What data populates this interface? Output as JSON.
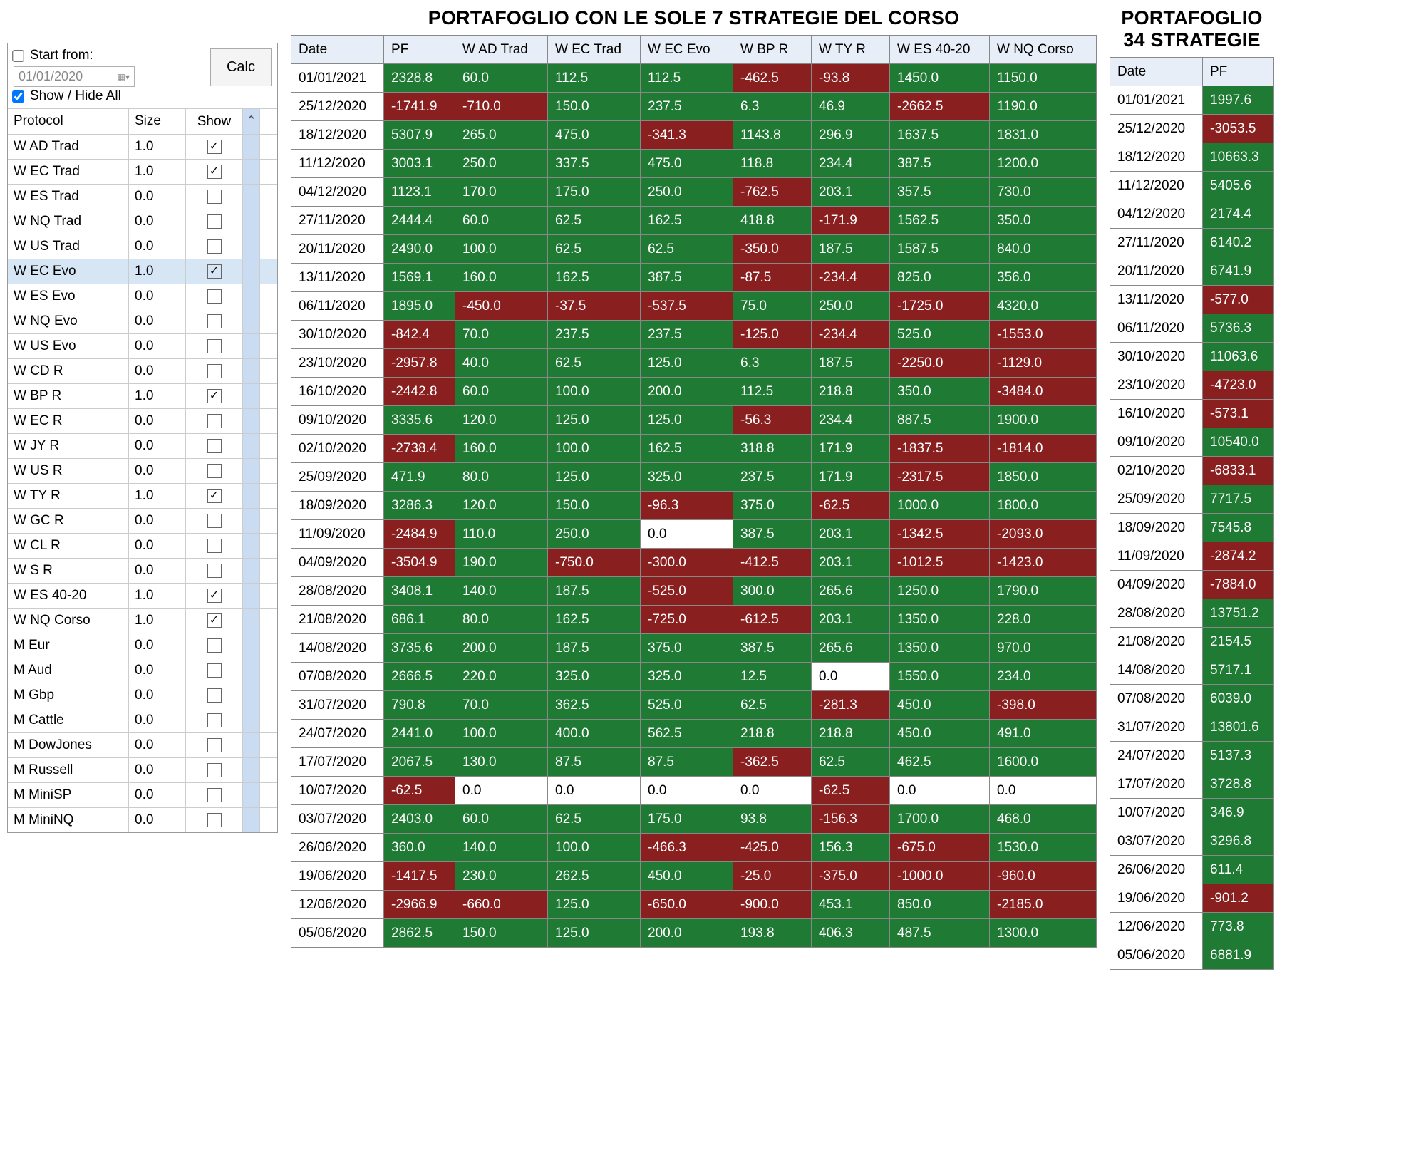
{
  "titles": {
    "main": "PORTAFOGLIO CON LE SOLE 7 STRATEGIE DEL CORSO",
    "side": "PORTAFOGLIO 34 STRATEGIE"
  },
  "panel": {
    "start_label": "Start from:",
    "date_value": "01/01/2020",
    "calc_label": "Calc",
    "showhide_label": "Show / Hide All",
    "head_protocol": "Protocol",
    "head_size": "Size",
    "head_show": "Show",
    "scroll_arrow": "⌃",
    "protocols": [
      {
        "name": "W AD Trad",
        "size": "1.0",
        "checked": true,
        "selected": false
      },
      {
        "name": "W EC Trad",
        "size": "1.0",
        "checked": true,
        "selected": false
      },
      {
        "name": "W ES Trad",
        "size": "0.0",
        "checked": false,
        "selected": false
      },
      {
        "name": "W NQ Trad",
        "size": "0.0",
        "checked": false,
        "selected": false
      },
      {
        "name": "W US Trad",
        "size": "0.0",
        "checked": false,
        "selected": false
      },
      {
        "name": "W EC Evo",
        "size": "1.0",
        "checked": true,
        "selected": true
      },
      {
        "name": "W ES Evo",
        "size": "0.0",
        "checked": false,
        "selected": false
      },
      {
        "name": "W NQ Evo",
        "size": "0.0",
        "checked": false,
        "selected": false
      },
      {
        "name": "W US Evo",
        "size": "0.0",
        "checked": false,
        "selected": false
      },
      {
        "name": "W CD R",
        "size": "0.0",
        "checked": false,
        "selected": false
      },
      {
        "name": "W BP R",
        "size": "1.0",
        "checked": true,
        "selected": false
      },
      {
        "name": "W EC R",
        "size": "0.0",
        "checked": false,
        "selected": false
      },
      {
        "name": "W JY R",
        "size": "0.0",
        "checked": false,
        "selected": false
      },
      {
        "name": "W US R",
        "size": "0.0",
        "checked": false,
        "selected": false
      },
      {
        "name": "W TY R",
        "size": "1.0",
        "checked": true,
        "selected": false
      },
      {
        "name": "W GC R",
        "size": "0.0",
        "checked": false,
        "selected": false
      },
      {
        "name": "W CL R",
        "size": "0.0",
        "checked": false,
        "selected": false
      },
      {
        "name": "W S R",
        "size": "0.0",
        "checked": false,
        "selected": false
      },
      {
        "name": "W ES 40-20",
        "size": "1.0",
        "checked": true,
        "selected": false
      },
      {
        "name": "W NQ Corso",
        "size": "1.0",
        "checked": true,
        "selected": false
      },
      {
        "name": "M Eur",
        "size": "0.0",
        "checked": false,
        "selected": false
      },
      {
        "name": "M Aud",
        "size": "0.0",
        "checked": false,
        "selected": false
      },
      {
        "name": "M Gbp",
        "size": "0.0",
        "checked": false,
        "selected": false
      },
      {
        "name": "M Cattle",
        "size": "0.0",
        "checked": false,
        "selected": false
      },
      {
        "name": "M DowJones",
        "size": "0.0",
        "checked": false,
        "selected": false
      },
      {
        "name": "M Russell",
        "size": "0.0",
        "checked": false,
        "selected": false
      },
      {
        "name": "M MiniSP",
        "size": "0.0",
        "checked": false,
        "selected": false
      },
      {
        "name": "M MiniNQ",
        "size": "0.0",
        "checked": false,
        "selected": false
      }
    ]
  },
  "main_table": {
    "columns": [
      "Date",
      "PF",
      "W AD Trad",
      "W EC Trad",
      "W EC Evo",
      "W BP R",
      "W TY R",
      "W ES 40-20",
      "W NQ Corso"
    ],
    "rows": [
      [
        "01/01/2021",
        "2328.8",
        "60.0",
        "112.5",
        "112.5",
        "-462.5",
        "-93.8",
        "1450.0",
        "1150.0"
      ],
      [
        "25/12/2020",
        "-1741.9",
        "-710.0",
        "150.0",
        "237.5",
        "6.3",
        "46.9",
        "-2662.5",
        "1190.0"
      ],
      [
        "18/12/2020",
        "5307.9",
        "265.0",
        "475.0",
        "-341.3",
        "1143.8",
        "296.9",
        "1637.5",
        "1831.0"
      ],
      [
        "11/12/2020",
        "3003.1",
        "250.0",
        "337.5",
        "475.0",
        "118.8",
        "234.4",
        "387.5",
        "1200.0"
      ],
      [
        "04/12/2020",
        "1123.1",
        "170.0",
        "175.0",
        "250.0",
        "-762.5",
        "203.1",
        "357.5",
        "730.0"
      ],
      [
        "27/11/2020",
        "2444.4",
        "60.0",
        "62.5",
        "162.5",
        "418.8",
        "-171.9",
        "1562.5",
        "350.0"
      ],
      [
        "20/11/2020",
        "2490.0",
        "100.0",
        "62.5",
        "62.5",
        "-350.0",
        "187.5",
        "1587.5",
        "840.0"
      ],
      [
        "13/11/2020",
        "1569.1",
        "160.0",
        "162.5",
        "387.5",
        "-87.5",
        "-234.4",
        "825.0",
        "356.0"
      ],
      [
        "06/11/2020",
        "1895.0",
        "-450.0",
        "-37.5",
        "-537.5",
        "75.0",
        "250.0",
        "-1725.0",
        "4320.0"
      ],
      [
        "30/10/2020",
        "-842.4",
        "70.0",
        "237.5",
        "237.5",
        "-125.0",
        "-234.4",
        "525.0",
        "-1553.0"
      ],
      [
        "23/10/2020",
        "-2957.8",
        "40.0",
        "62.5",
        "125.0",
        "6.3",
        "187.5",
        "-2250.0",
        "-1129.0"
      ],
      [
        "16/10/2020",
        "-2442.8",
        "60.0",
        "100.0",
        "200.0",
        "112.5",
        "218.8",
        "350.0",
        "-3484.0"
      ],
      [
        "09/10/2020",
        "3335.6",
        "120.0",
        "125.0",
        "125.0",
        "-56.3",
        "234.4",
        "887.5",
        "1900.0"
      ],
      [
        "02/10/2020",
        "-2738.4",
        "160.0",
        "100.0",
        "162.5",
        "318.8",
        "171.9",
        "-1837.5",
        "-1814.0"
      ],
      [
        "25/09/2020",
        "471.9",
        "80.0",
        "125.0",
        "325.0",
        "237.5",
        "171.9",
        "-2317.5",
        "1850.0"
      ],
      [
        "18/09/2020",
        "3286.3",
        "120.0",
        "150.0",
        "-96.3",
        "375.0",
        "-62.5",
        "1000.0",
        "1800.0"
      ],
      [
        "11/09/2020",
        "-2484.9",
        "110.0",
        "250.0",
        "0.0",
        "387.5",
        "203.1",
        "-1342.5",
        "-2093.0"
      ],
      [
        "04/09/2020",
        "-3504.9",
        "190.0",
        "-750.0",
        "-300.0",
        "-412.5",
        "203.1",
        "-1012.5",
        "-1423.0"
      ],
      [
        "28/08/2020",
        "3408.1",
        "140.0",
        "187.5",
        "-525.0",
        "300.0",
        "265.6",
        "1250.0",
        "1790.0"
      ],
      [
        "21/08/2020",
        "686.1",
        "80.0",
        "162.5",
        "-725.0",
        "-612.5",
        "203.1",
        "1350.0",
        "228.0"
      ],
      [
        "14/08/2020",
        "3735.6",
        "200.0",
        "187.5",
        "375.0",
        "387.5",
        "265.6",
        "1350.0",
        "970.0"
      ],
      [
        "07/08/2020",
        "2666.5",
        "220.0",
        "325.0",
        "325.0",
        "12.5",
        "0.0",
        "1550.0",
        "234.0"
      ],
      [
        "31/07/2020",
        "790.8",
        "70.0",
        "362.5",
        "525.0",
        "62.5",
        "-281.3",
        "450.0",
        "-398.0"
      ],
      [
        "24/07/2020",
        "2441.0",
        "100.0",
        "400.0",
        "562.5",
        "218.8",
        "218.8",
        "450.0",
        "491.0"
      ],
      [
        "17/07/2020",
        "2067.5",
        "130.0",
        "87.5",
        "87.5",
        "-362.5",
        "62.5",
        "462.5",
        "1600.0"
      ],
      [
        "10/07/2020",
        "-62.5",
        "0.0",
        "0.0",
        "0.0",
        "0.0",
        "-62.5",
        "0.0",
        "0.0"
      ],
      [
        "03/07/2020",
        "2403.0",
        "60.0",
        "62.5",
        "175.0",
        "93.8",
        "-156.3",
        "1700.0",
        "468.0"
      ],
      [
        "26/06/2020",
        "360.0",
        "140.0",
        "100.0",
        "-466.3",
        "-425.0",
        "156.3",
        "-675.0",
        "1530.0"
      ],
      [
        "19/06/2020",
        "-1417.5",
        "230.0",
        "262.5",
        "450.0",
        "-25.0",
        "-375.0",
        "-1000.0",
        "-960.0"
      ],
      [
        "12/06/2020",
        "-2966.9",
        "-660.0",
        "125.0",
        "-650.0",
        "-900.0",
        "453.1",
        "850.0",
        "-2185.0"
      ],
      [
        "05/06/2020",
        "2862.5",
        "150.0",
        "125.0",
        "200.0",
        "193.8",
        "406.3",
        "487.5",
        "1300.0"
      ]
    ]
  },
  "side_table": {
    "columns": [
      "Date",
      "PF"
    ],
    "rows": [
      [
        "01/01/2021",
        "1997.6"
      ],
      [
        "25/12/2020",
        "-3053.5"
      ],
      [
        "18/12/2020",
        "10663.3"
      ],
      [
        "11/12/2020",
        "5405.6"
      ],
      [
        "04/12/2020",
        "2174.4"
      ],
      [
        "27/11/2020",
        "6140.2"
      ],
      [
        "20/11/2020",
        "6741.9"
      ],
      [
        "13/11/2020",
        "-577.0"
      ],
      [
        "06/11/2020",
        "5736.3"
      ],
      [
        "30/10/2020",
        "11063.6"
      ],
      [
        "23/10/2020",
        "-4723.0"
      ],
      [
        "16/10/2020",
        "-573.1"
      ],
      [
        "09/10/2020",
        "10540.0"
      ],
      [
        "02/10/2020",
        "-6833.1"
      ],
      [
        "25/09/2020",
        "7717.5"
      ],
      [
        "18/09/2020",
        "7545.8"
      ],
      [
        "11/09/2020",
        "-2874.2"
      ],
      [
        "04/09/2020",
        "-7884.0"
      ],
      [
        "28/08/2020",
        "13751.2"
      ],
      [
        "21/08/2020",
        "2154.5"
      ],
      [
        "14/08/2020",
        "5717.1"
      ],
      [
        "07/08/2020",
        "6039.0"
      ],
      [
        "31/07/2020",
        "13801.6"
      ],
      [
        "24/07/2020",
        "5137.3"
      ],
      [
        "17/07/2020",
        "3728.8"
      ],
      [
        "10/07/2020",
        "346.9"
      ],
      [
        "03/07/2020",
        "3296.8"
      ],
      [
        "26/06/2020",
        "611.4"
      ],
      [
        "19/06/2020",
        "-901.2"
      ],
      [
        "12/06/2020",
        "773.8"
      ],
      [
        "05/06/2020",
        "6881.9"
      ]
    ]
  },
  "colors": {
    "pos_bg": "#1f7a34",
    "neg_bg": "#8a1f1f",
    "header_bg": "#e8eef8",
    "scroll_bg": "#c9dcf2",
    "selected_bg": "#d6e6f5"
  }
}
